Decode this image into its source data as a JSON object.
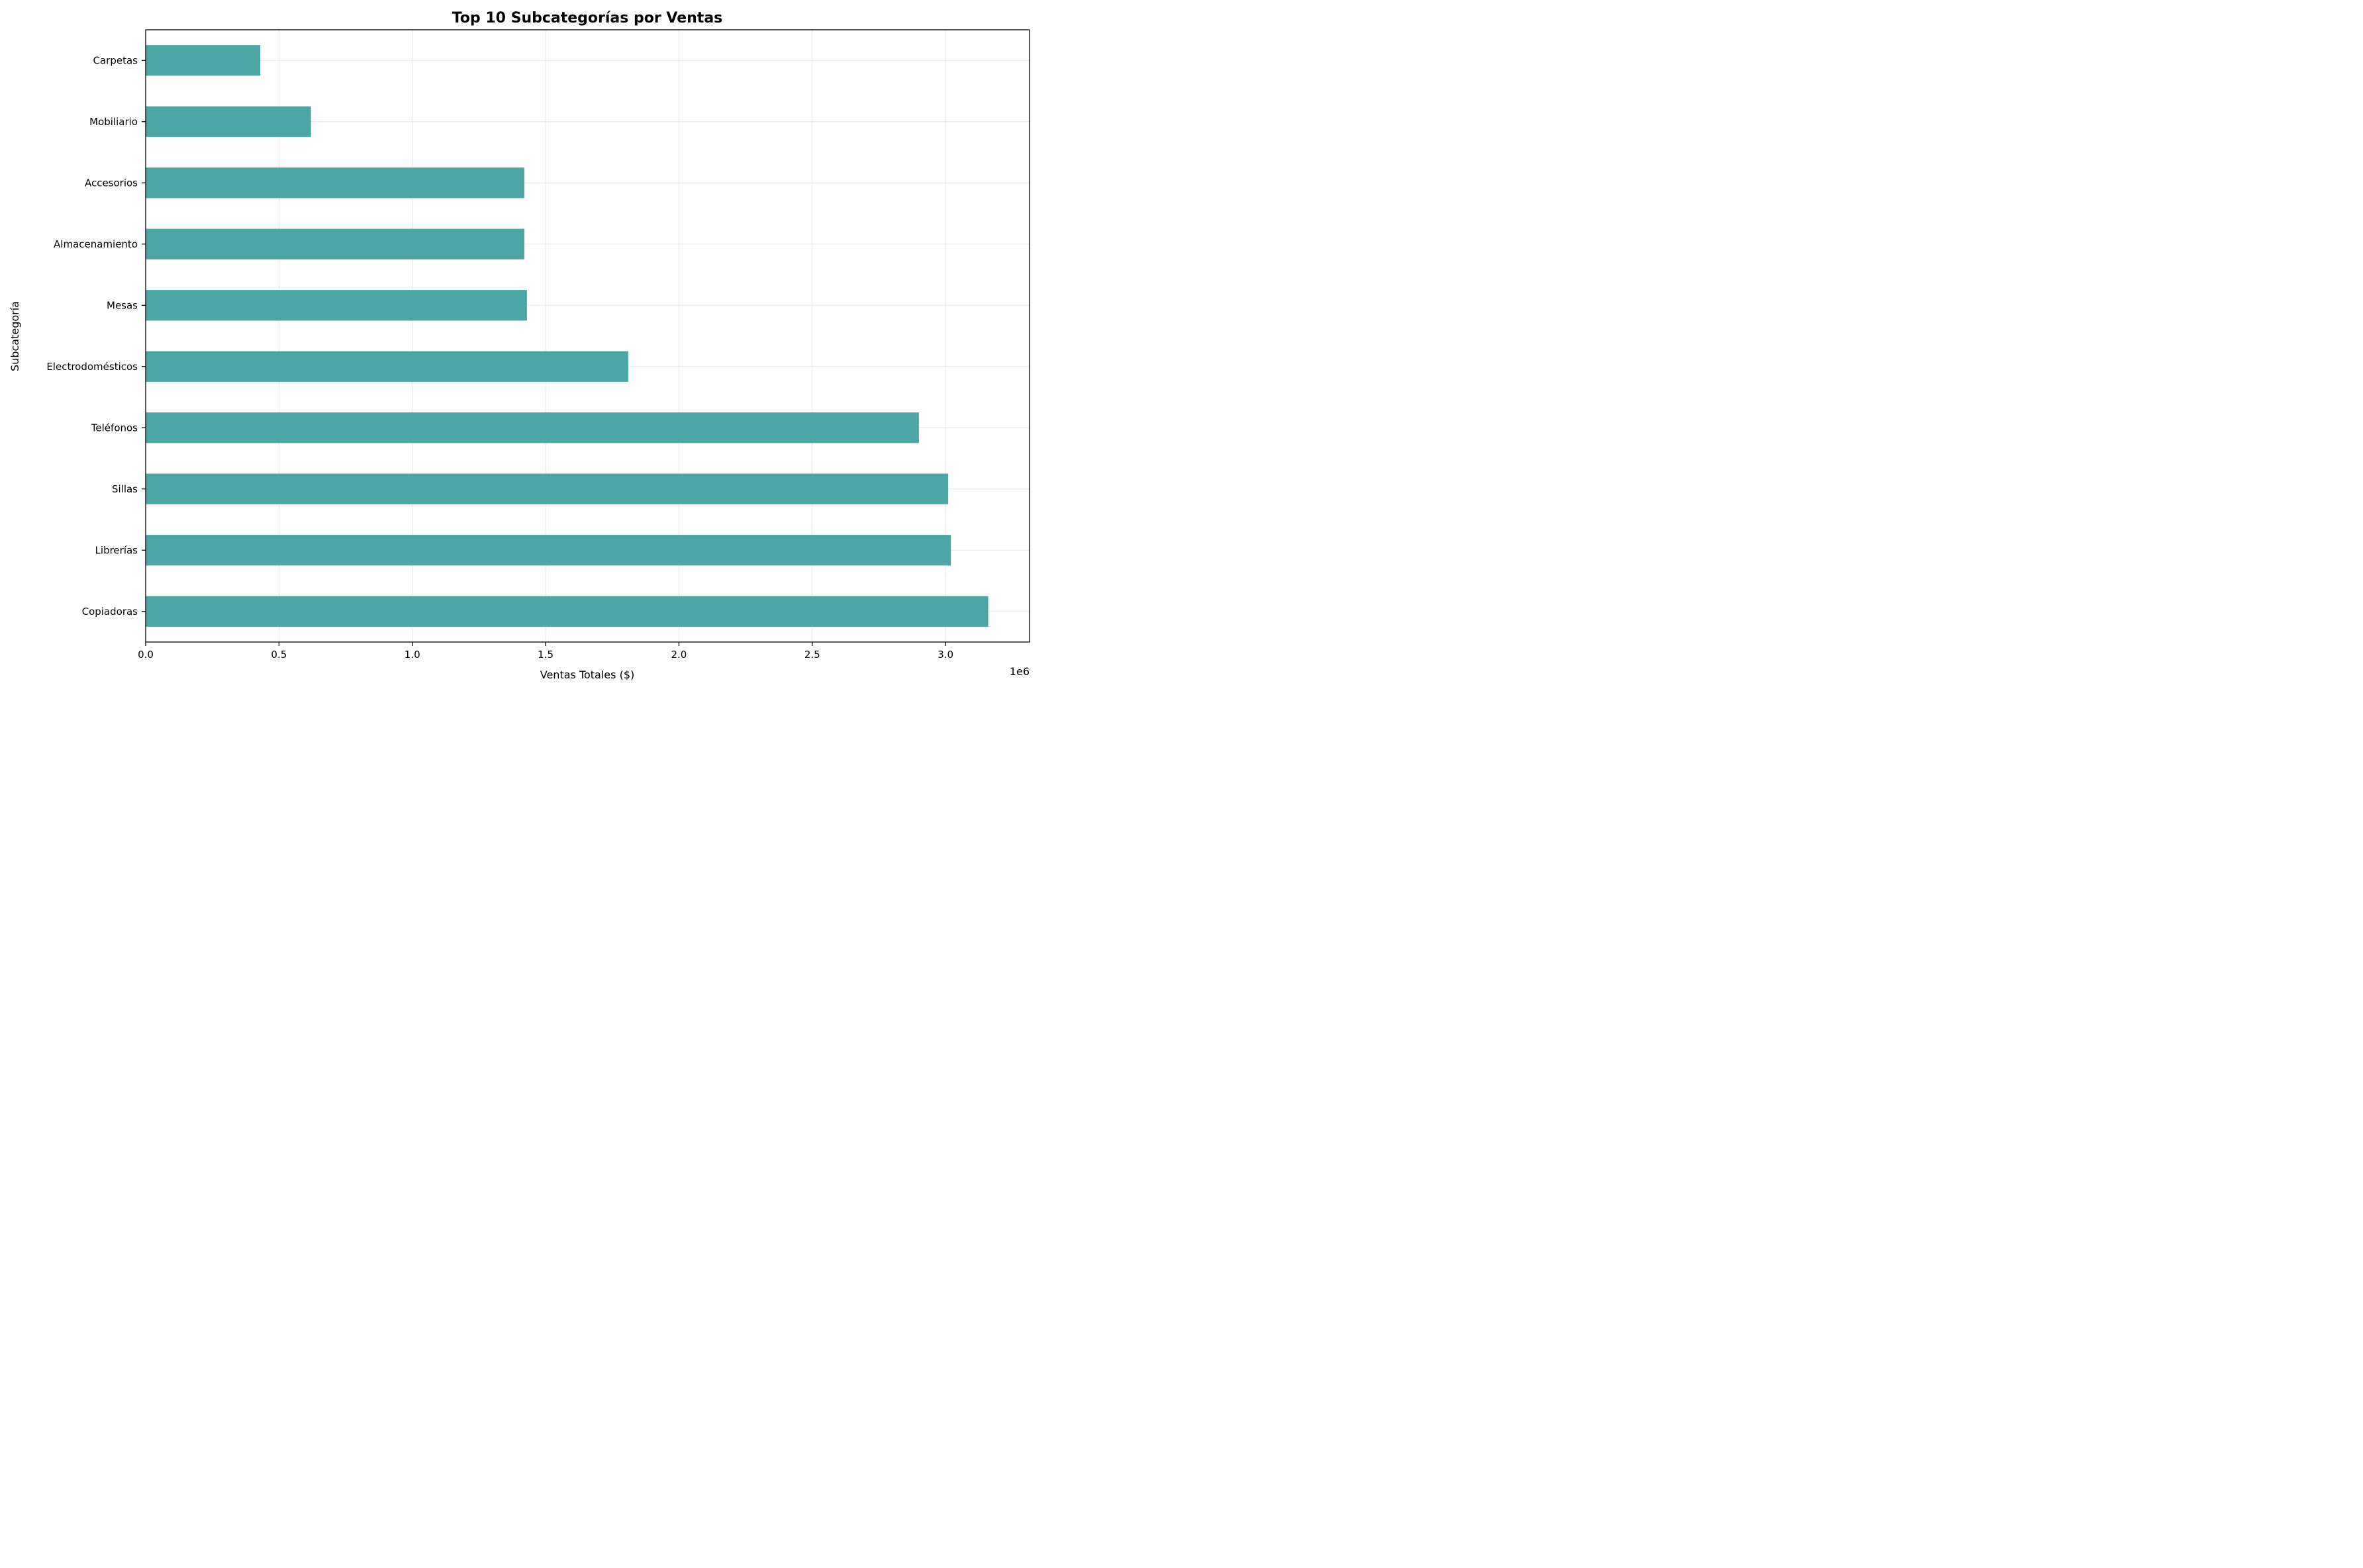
{
  "chart_data": {
    "type": "bar",
    "orientation": "horizontal",
    "title": "Top 10 Subcategorías por Ventas",
    "xlabel": "Ventas Totales ($)",
    "ylabel": "Subcategoría",
    "x_offset_label": "1e6",
    "xlim": [
      0,
      3.315
    ],
    "x_scale_factor": 1000000,
    "xticks": [
      0.0,
      0.5,
      1.0,
      1.5,
      2.0,
      2.5,
      3.0
    ],
    "xtick_labels": [
      "0.0",
      "0.5",
      "1.0",
      "1.5",
      "2.0",
      "2.5",
      "3.0"
    ],
    "grid": true,
    "categories": [
      "Copiadoras",
      "Librerías",
      "Sillas",
      "Teléfonos",
      "Electrodomésticos",
      "Mesas",
      "Almacenamiento",
      "Accesorios",
      "Mobiliario",
      "Carpetas"
    ],
    "values": [
      3.16,
      3.02,
      3.01,
      2.9,
      1.81,
      1.43,
      1.42,
      1.42,
      0.62,
      0.43
    ],
    "bar_color": "#4ca6a6"
  }
}
